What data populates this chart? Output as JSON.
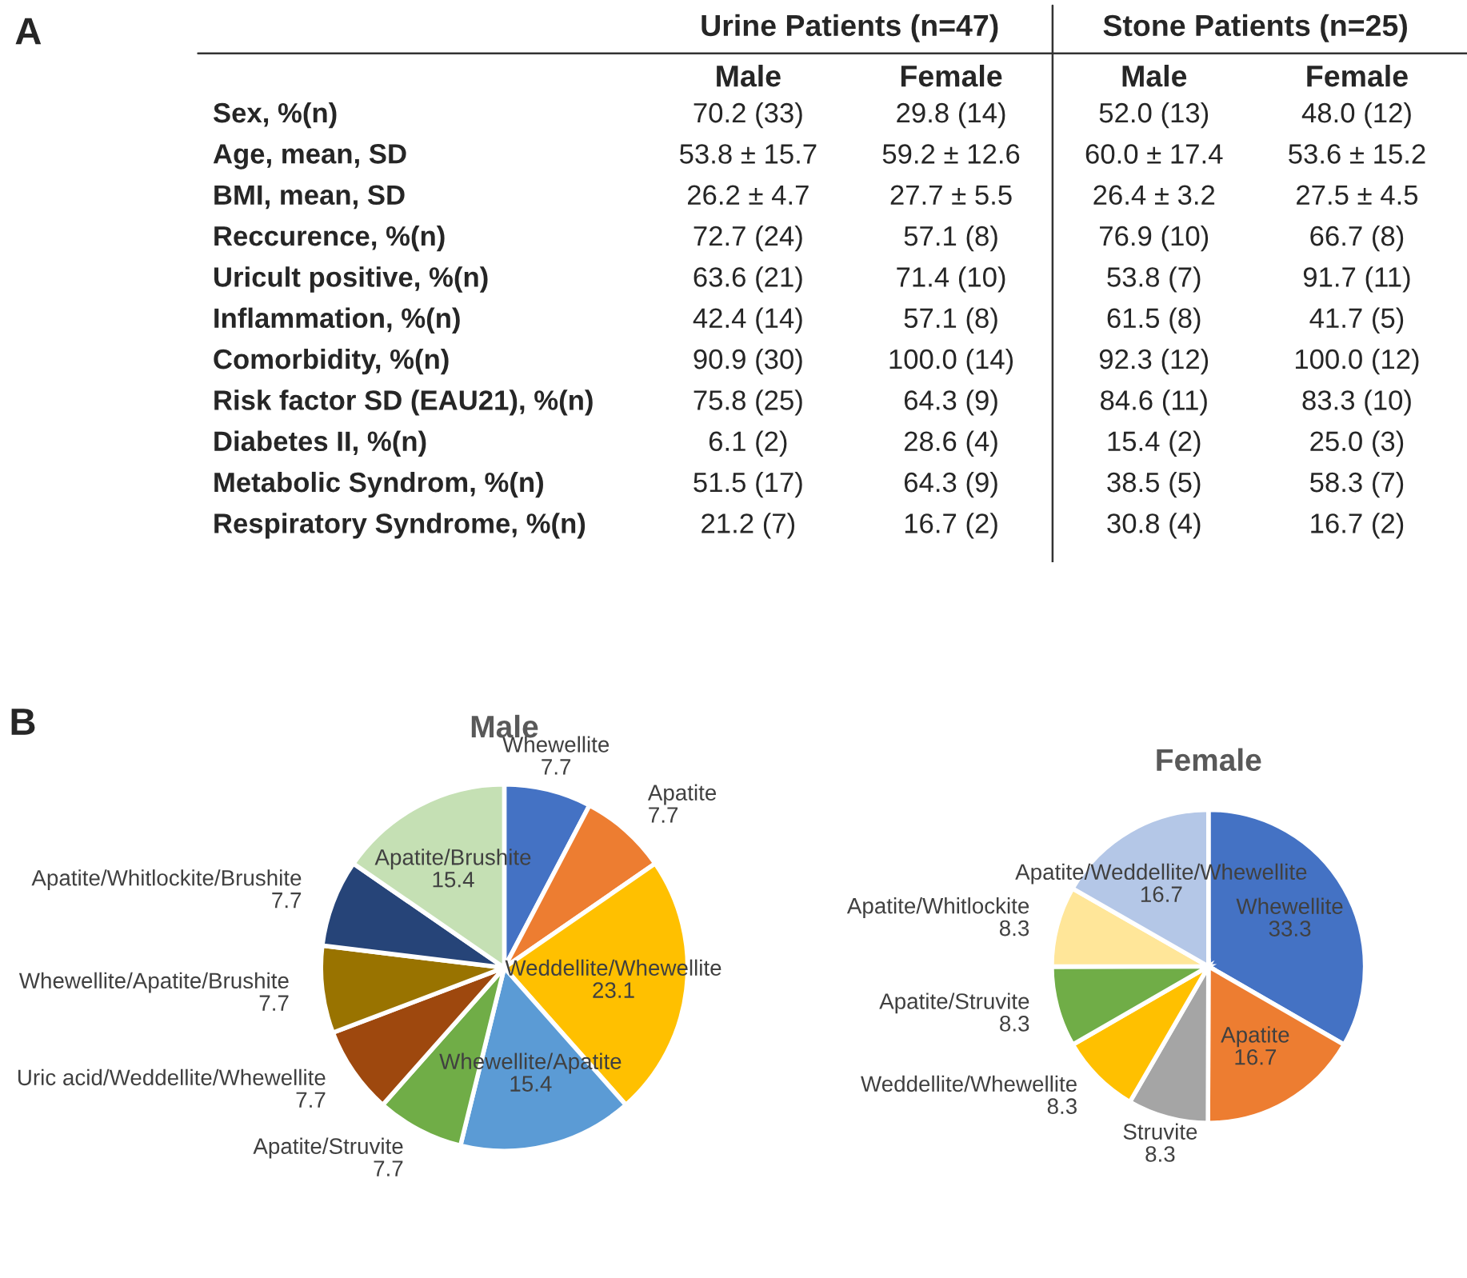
{
  "chart_data": [
    {
      "type": "other",
      "title": "A",
      "annotations": [
        "Urine Patients (n=47)",
        "Stone Patients (n=25)"
      ],
      "categories": [
        "Male",
        "Female",
        "Male",
        "Female"
      ],
      "y_categories": [
        "Sex, %(n)",
        "Age, mean, SD",
        "BMI, mean, SD",
        "Reccurence, %(n)",
        "Uricult positive, %(n)",
        "Inflammation, %(n)",
        "Comorbidity, %(n)",
        "Risk factor SD (EAU21), %(n)",
        "Diabetes II, %(n)",
        "Metabolic Syndrom, %(n)",
        "Respiratory Syndrome, %(n)"
      ],
      "cell_labels": [
        [
          "70.2 (33)",
          "29.8 (14)",
          "52.0 (13)",
          "48.0 (12)"
        ],
        [
          "53.8 ± 15.7",
          "59.2 ± 12.6",
          "60.0 ± 17.4",
          "53.6 ± 15.2"
        ],
        [
          "26.2 ± 4.7",
          "27.7 ± 5.5",
          "26.4 ± 3.2",
          "27.5 ± 4.5"
        ],
        [
          "72.7 (24)",
          "57.1 (8)",
          "76.9 (10)",
          "66.7 (8)"
        ],
        [
          "63.6 (21)",
          "71.4 (10)",
          "53.8 (7)",
          "91.7 (11)"
        ],
        [
          "42.4 (14)",
          "57.1 (8)",
          "61.5 (8)",
          "41.7 (5)"
        ],
        [
          "90.9 (30)",
          "100.0 (14)",
          "92.3 (12)",
          "100.0 (12)"
        ],
        [
          "75.8 (25)",
          "64.3 (9)",
          "84.6 (11)",
          "83.3 (10)"
        ],
        [
          "6.1 (2)",
          "28.6 (4)",
          "15.4 (2)",
          "25.0 (3)"
        ],
        [
          "51.5 (17)",
          "64.3 (9)",
          "38.5 (5)",
          "58.3 (7)"
        ],
        [
          "21.2 (7)",
          "16.7 (2)",
          "30.8 (4)",
          "16.7 (2)"
        ]
      ]
    },
    {
      "type": "pie",
      "title": "Male",
      "annotations": [
        "B"
      ],
      "data_labels": true,
      "categories": [
        "Whewellite",
        "Apatite",
        "Weddellite/Whewellite",
        "Whewellite/Apatite",
        "Apatite/Struvite",
        "Uric acid/Weddellite/Whewellite",
        "Whewellite/Apatite/Brushite",
        "Apatite/Whitlockite/Brushite",
        "Apatite/Brushite"
      ],
      "values": [
        7.7,
        7.7,
        23.1,
        15.4,
        7.7,
        7.7,
        7.7,
        7.7,
        15.4
      ],
      "colors": [
        "#4472c4",
        "#ed7d31",
        "#ffc000",
        "#5b9bd5",
        "#70ad47",
        "#9e480e",
        "#997300",
        "#264478",
        "#c5e0b4"
      ]
    },
    {
      "type": "pie",
      "title": "Female",
      "data_labels": true,
      "categories": [
        "Whewellite",
        "Apatite",
        "Struvite",
        "Weddellite/Whewellite",
        "Apatite/Struvite",
        "Apatite/Whitlockite",
        "Apatite/Weddellite/Whewellite"
      ],
      "values": [
        33.3,
        16.7,
        8.3,
        8.3,
        8.3,
        8.3,
        16.7
      ],
      "colors": [
        "#4472c4",
        "#ed7d31",
        "#a5a5a5",
        "#ffc000",
        "#70ad47",
        "#ffe699",
        "#b4c7e7"
      ]
    }
  ]
}
